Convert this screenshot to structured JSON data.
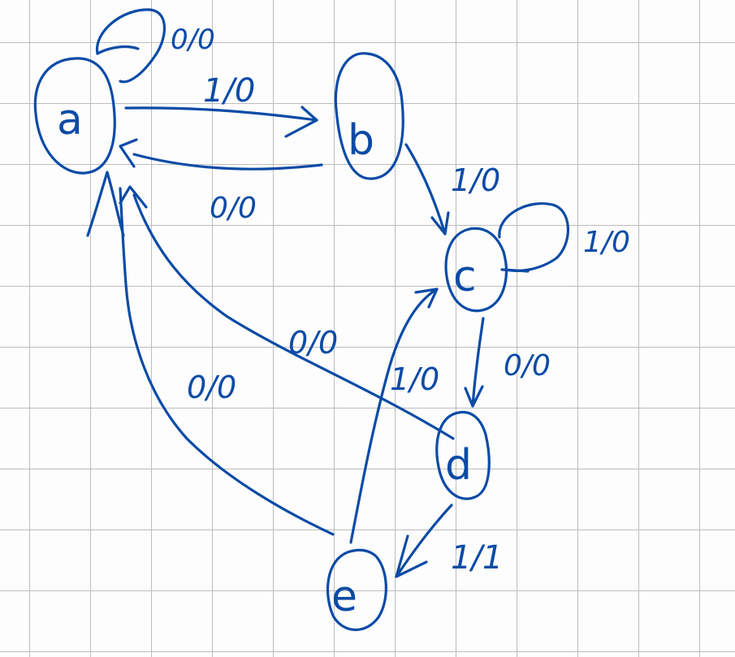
{
  "ink_color": "#0b4ba6",
  "grid_color": "#bdbdbd",
  "states": {
    "a": "a",
    "b": "b",
    "c": "c",
    "d": "d",
    "e": "e"
  },
  "transitions": {
    "a_self": "0/0",
    "a_to_b": "1/0",
    "b_to_a": "0/0",
    "b_to_c": "1/0",
    "c_self": "1/0",
    "c_to_d": "0/0",
    "d_to_a": "0/0",
    "d_to_e": "1/1",
    "e_to_c": "1/0",
    "e_to_a": "0/0"
  }
}
